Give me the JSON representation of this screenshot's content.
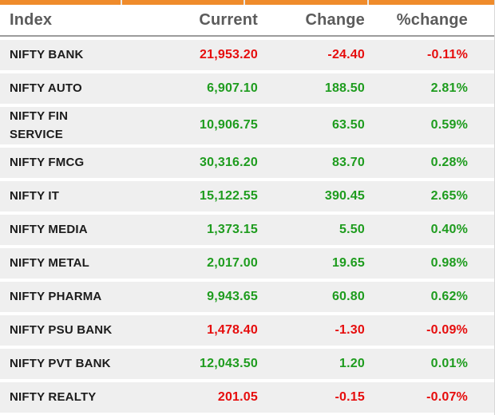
{
  "colors": {
    "accent_orange": "#ef8b2b",
    "positive_green": "#1e9c1e",
    "negative_red": "#e60d0d",
    "header_text": "#5b5b5b",
    "row_background": "#efefef",
    "index_text": "#1b1b1b"
  },
  "table": {
    "headers": [
      "Index",
      "Current",
      "Change",
      "%change"
    ],
    "rows": [
      {
        "index": "NIFTY BANK",
        "current": "21,953.20",
        "change": "-24.40",
        "pct_change": "-0.11%",
        "direction": "down"
      },
      {
        "index": "NIFTY AUTO",
        "current": "6,907.10",
        "change": "188.50",
        "pct_change": "2.81%",
        "direction": "up"
      },
      {
        "index": "NIFTY FIN SERVICE",
        "current": "10,906.75",
        "change": "63.50",
        "pct_change": "0.59%",
        "direction": "up"
      },
      {
        "index": "NIFTY FMCG",
        "current": "30,316.20",
        "change": "83.70",
        "pct_change": "0.28%",
        "direction": "up"
      },
      {
        "index": "NIFTY IT",
        "current": "15,122.55",
        "change": "390.45",
        "pct_change": "2.65%",
        "direction": "up"
      },
      {
        "index": "NIFTY MEDIA",
        "current": "1,373.15",
        "change": "5.50",
        "pct_change": "0.40%",
        "direction": "up"
      },
      {
        "index": "NIFTY METAL",
        "current": "2,017.00",
        "change": "19.65",
        "pct_change": "0.98%",
        "direction": "up"
      },
      {
        "index": "NIFTY PHARMA",
        "current": "9,943.65",
        "change": "60.80",
        "pct_change": "0.62%",
        "direction": "up"
      },
      {
        "index": "NIFTY PSU BANK",
        "current": "1,478.40",
        "change": "-1.30",
        "pct_change": "-0.09%",
        "direction": "down"
      },
      {
        "index": "NIFTY PVT BANK",
        "current": "12,043.50",
        "change": "1.20",
        "pct_change": "0.01%",
        "direction": "up"
      },
      {
        "index": "NIFTY REALTY",
        "current": "201.05",
        "change": "-0.15",
        "pct_change": "-0.07%",
        "direction": "down"
      }
    ]
  }
}
